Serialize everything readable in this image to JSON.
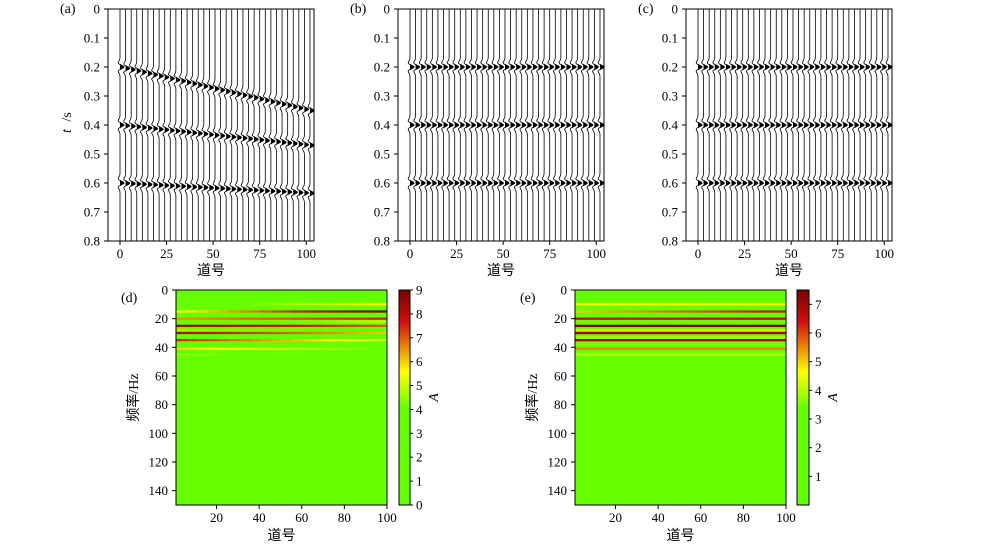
{
  "chart_data": [
    {
      "id": "a",
      "type": "line",
      "panel_label": "(a)",
      "xlabel": "道号",
      "ylabel_italic": "t",
      "ylabel_unit": "/s",
      "xticks": [
        "0",
        "25",
        "50",
        "75",
        "100"
      ],
      "yticks": [
        "0",
        "0.1",
        "0.2",
        "0.3",
        "0.4",
        "0.5",
        "0.6",
        "0.7",
        "0.8"
      ],
      "xlim": [
        0,
        102
      ],
      "ylim": [
        0,
        0.8
      ],
      "trace_count": 35,
      "trace_spacing": 3,
      "events": [
        {
          "t_first": 0.2,
          "t_last": 0.35
        },
        {
          "t_first": 0.4,
          "t_last": 0.47
        },
        {
          "t_first": 0.6,
          "t_last": 0.635
        }
      ]
    },
    {
      "id": "b",
      "type": "line",
      "panel_label": "(b)",
      "xlabel": "道号",
      "xticks": [
        "0",
        "25",
        "50",
        "75",
        "100"
      ],
      "yticks": [
        "0",
        "0.1",
        "0.2",
        "0.3",
        "0.4",
        "0.5",
        "0.6",
        "0.7",
        "0.8"
      ],
      "xlim": [
        0,
        102
      ],
      "ylim": [
        0,
        0.8
      ],
      "trace_count": 35,
      "trace_spacing": 3,
      "events": [
        {
          "t_first": 0.2,
          "t_last": 0.2
        },
        {
          "t_first": 0.4,
          "t_last": 0.4
        },
        {
          "t_first": 0.6,
          "t_last": 0.6
        }
      ]
    },
    {
      "id": "c",
      "type": "line",
      "panel_label": "(c)",
      "xlabel": "道号",
      "xticks": [
        "0",
        "25",
        "50",
        "75",
        "100"
      ],
      "yticks": [
        "0",
        "0.1",
        "0.2",
        "0.3",
        "0.4",
        "0.5",
        "0.6",
        "0.7",
        "0.8"
      ],
      "xlim": [
        0,
        102
      ],
      "ylim": [
        0,
        0.8
      ],
      "trace_count": 35,
      "trace_spacing": 3,
      "events": [
        {
          "t_first": 0.2,
          "t_last": 0.2
        },
        {
          "t_first": 0.4,
          "t_last": 0.4
        },
        {
          "t_first": 0.6,
          "t_last": 0.6
        }
      ]
    },
    {
      "id": "d",
      "type": "heatmap",
      "panel_label": "(d)",
      "xlabel": "道号",
      "ylabel": "频率/Hz",
      "xticks": [
        "20",
        "40",
        "60",
        "80",
        "100"
      ],
      "yticks": [
        "0",
        "20",
        "40",
        "60",
        "80",
        "100",
        "120",
        "140"
      ],
      "xlim": [
        1,
        100
      ],
      "ylim": [
        0,
        150
      ],
      "colorbar_label": "A",
      "colorbar_ticks": [
        "0",
        "1",
        "2",
        "3",
        "4",
        "5",
        "6",
        "7",
        "8",
        "9"
      ],
      "colorbar_range": [
        0,
        9
      ],
      "colors": {
        "low": "#66ff00",
        "mid": "#ffff00",
        "high": "#d01010",
        "max": "#7a0000"
      },
      "bands": [
        {
          "f": 10,
          "a1": 3.5,
          "a100": 5.5
        },
        {
          "f": 12,
          "a1": 2.0,
          "a100": 3.0
        },
        {
          "f": 15,
          "a1": 5.5,
          "a100": 9.0
        },
        {
          "f": 17,
          "a1": 3.0,
          "a100": 4.0
        },
        {
          "f": 20,
          "a1": 6.5,
          "a100": 7.5
        },
        {
          "f": 22,
          "a1": 3.0,
          "a100": 5.0
        },
        {
          "f": 25,
          "a1": 8.5,
          "a100": 7.0
        },
        {
          "f": 28,
          "a1": 4.5,
          "a100": 4.0
        },
        {
          "f": 30,
          "a1": 8.0,
          "a100": 6.0
        },
        {
          "f": 33,
          "a1": 4.0,
          "a100": 3.5
        },
        {
          "f": 35,
          "a1": 7.5,
          "a100": 5.0
        },
        {
          "f": 38,
          "a1": 3.5,
          "a100": 3.0
        },
        {
          "f": 41,
          "a1": 6.0,
          "a100": 4.0
        },
        {
          "f": 45,
          "a1": 4.5,
          "a100": 3.0
        },
        {
          "f": 50,
          "a1": 3.5,
          "a100": 2.5
        },
        {
          "f": 55,
          "a1": 2.5,
          "a100": 1.5
        }
      ]
    },
    {
      "id": "e",
      "type": "heatmap",
      "panel_label": "(e)",
      "xlabel": "道号",
      "ylabel": "频率/Hz",
      "xticks": [
        "20",
        "40",
        "60",
        "80",
        "100"
      ],
      "yticks": [
        "0",
        "20",
        "40",
        "60",
        "80",
        "100",
        "120",
        "140"
      ],
      "xlim": [
        1,
        100
      ],
      "ylim": [
        0,
        150
      ],
      "colorbar_label": "A",
      "colorbar_ticks": [
        "1",
        "2",
        "3",
        "4",
        "5",
        "6",
        "7"
      ],
      "colorbar_range": [
        0,
        7.5
      ],
      "colors": {
        "low": "#66ff00",
        "mid": "#ffff00",
        "high": "#d01010",
        "max": "#7a0000"
      },
      "bands": [
        {
          "f": 10,
          "a1": 4.5,
          "a100": 4.5
        },
        {
          "f": 12,
          "a1": 2.0,
          "a100": 2.0
        },
        {
          "f": 15,
          "a1": 5.0,
          "a100": 6.5
        },
        {
          "f": 17,
          "a1": 3.0,
          "a100": 3.0
        },
        {
          "f": 20,
          "a1": 6.5,
          "a100": 6.5
        },
        {
          "f": 22,
          "a1": 3.0,
          "a100": 3.0
        },
        {
          "f": 25,
          "a1": 7.5,
          "a100": 7.5
        },
        {
          "f": 28,
          "a1": 4.5,
          "a100": 4.5
        },
        {
          "f": 30,
          "a1": 7.0,
          "a100": 7.0
        },
        {
          "f": 33,
          "a1": 4.0,
          "a100": 4.0
        },
        {
          "f": 35,
          "a1": 7.0,
          "a100": 7.0
        },
        {
          "f": 38,
          "a1": 3.5,
          "a100": 3.5
        },
        {
          "f": 41,
          "a1": 5.5,
          "a100": 5.5
        },
        {
          "f": 45,
          "a1": 4.0,
          "a100": 4.0
        },
        {
          "f": 50,
          "a1": 3.0,
          "a100": 3.0
        },
        {
          "f": 55,
          "a1": 2.0,
          "a100": 2.0
        }
      ]
    }
  ]
}
